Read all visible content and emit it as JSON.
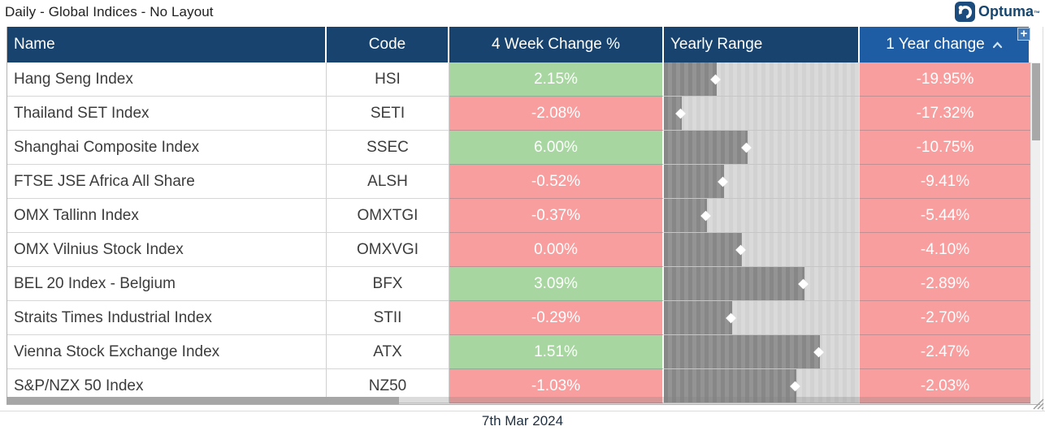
{
  "window": {
    "title": "Daily - Global Indices - No Layout",
    "footer_date": "7th Mar 2024"
  },
  "brand": {
    "name": "Optuma",
    "trademark": "™"
  },
  "icons": {
    "add_column": "+",
    "sort_ascending": "chevron-up",
    "range_marker": "diamond",
    "logo": "optuma-circle",
    "resize_grip": "diagonal-lines"
  },
  "table": {
    "headers": [
      {
        "id": "name",
        "label": "Name"
      },
      {
        "id": "code",
        "label": "Code"
      },
      {
        "id": "four_week",
        "label": "4 Week Change %"
      },
      {
        "id": "range",
        "label": "Yearly Range"
      },
      {
        "id": "one_year",
        "label": "1 Year change",
        "sorted": "ascending"
      }
    ],
    "rows": [
      {
        "name": "Hang Seng Index",
        "code": "HSI",
        "four_week": "2.15%",
        "four_week_positive": true,
        "range_pos": 0.27,
        "one_year": "-19.95%"
      },
      {
        "name": "Thailand SET Index",
        "code": "SETI",
        "four_week": "-2.08%",
        "four_week_positive": false,
        "range_pos": 0.09,
        "one_year": "-17.32%"
      },
      {
        "name": "Shanghai Composite Index",
        "code": "SSEC",
        "four_week": "6.00%",
        "four_week_positive": true,
        "range_pos": 0.43,
        "one_year": "-10.75%"
      },
      {
        "name": "FTSE JSE Africa All Share",
        "code": "ALSH",
        "four_week": "-0.52%",
        "four_week_positive": false,
        "range_pos": 0.31,
        "one_year": "-9.41%"
      },
      {
        "name": "OMX Tallinn Index",
        "code": "OMXTGI",
        "four_week": "-0.37%",
        "four_week_positive": false,
        "range_pos": 0.22,
        "one_year": "-5.44%"
      },
      {
        "name": "OMX Vilnius Stock Index",
        "code": "OMXVGI",
        "four_week": "0.00%",
        "four_week_positive": false,
        "range_pos": 0.4,
        "one_year": "-4.10%"
      },
      {
        "name": "BEL 20 Index - Belgium",
        "code": "BFX",
        "four_week": "3.09%",
        "four_week_positive": true,
        "range_pos": 0.72,
        "one_year": "-2.89%"
      },
      {
        "name": "Straits Times Industrial Index",
        "code": "STII",
        "four_week": "-0.29%",
        "four_week_positive": false,
        "range_pos": 0.35,
        "one_year": "-2.70%"
      },
      {
        "name": "Vienna Stock Exchange Index",
        "code": "ATX",
        "four_week": "1.51%",
        "four_week_positive": true,
        "range_pos": 0.8,
        "one_year": "-2.47%"
      },
      {
        "name": "S&P/NZX 50 Index",
        "code": "NZ50",
        "four_week": "-1.03%",
        "four_week_positive": false,
        "range_pos": 0.68,
        "one_year": "-2.03%"
      }
    ]
  },
  "colors": {
    "header_bg": "#17436E",
    "header_sorted_bg": "#1E5DA3",
    "positive_bg": "#A8D6A1",
    "negative_bg": "#F99E9E",
    "range_dark": "#8E8E8E",
    "range_light": "#D5D5D5",
    "brand_navy": "#17466F"
  }
}
